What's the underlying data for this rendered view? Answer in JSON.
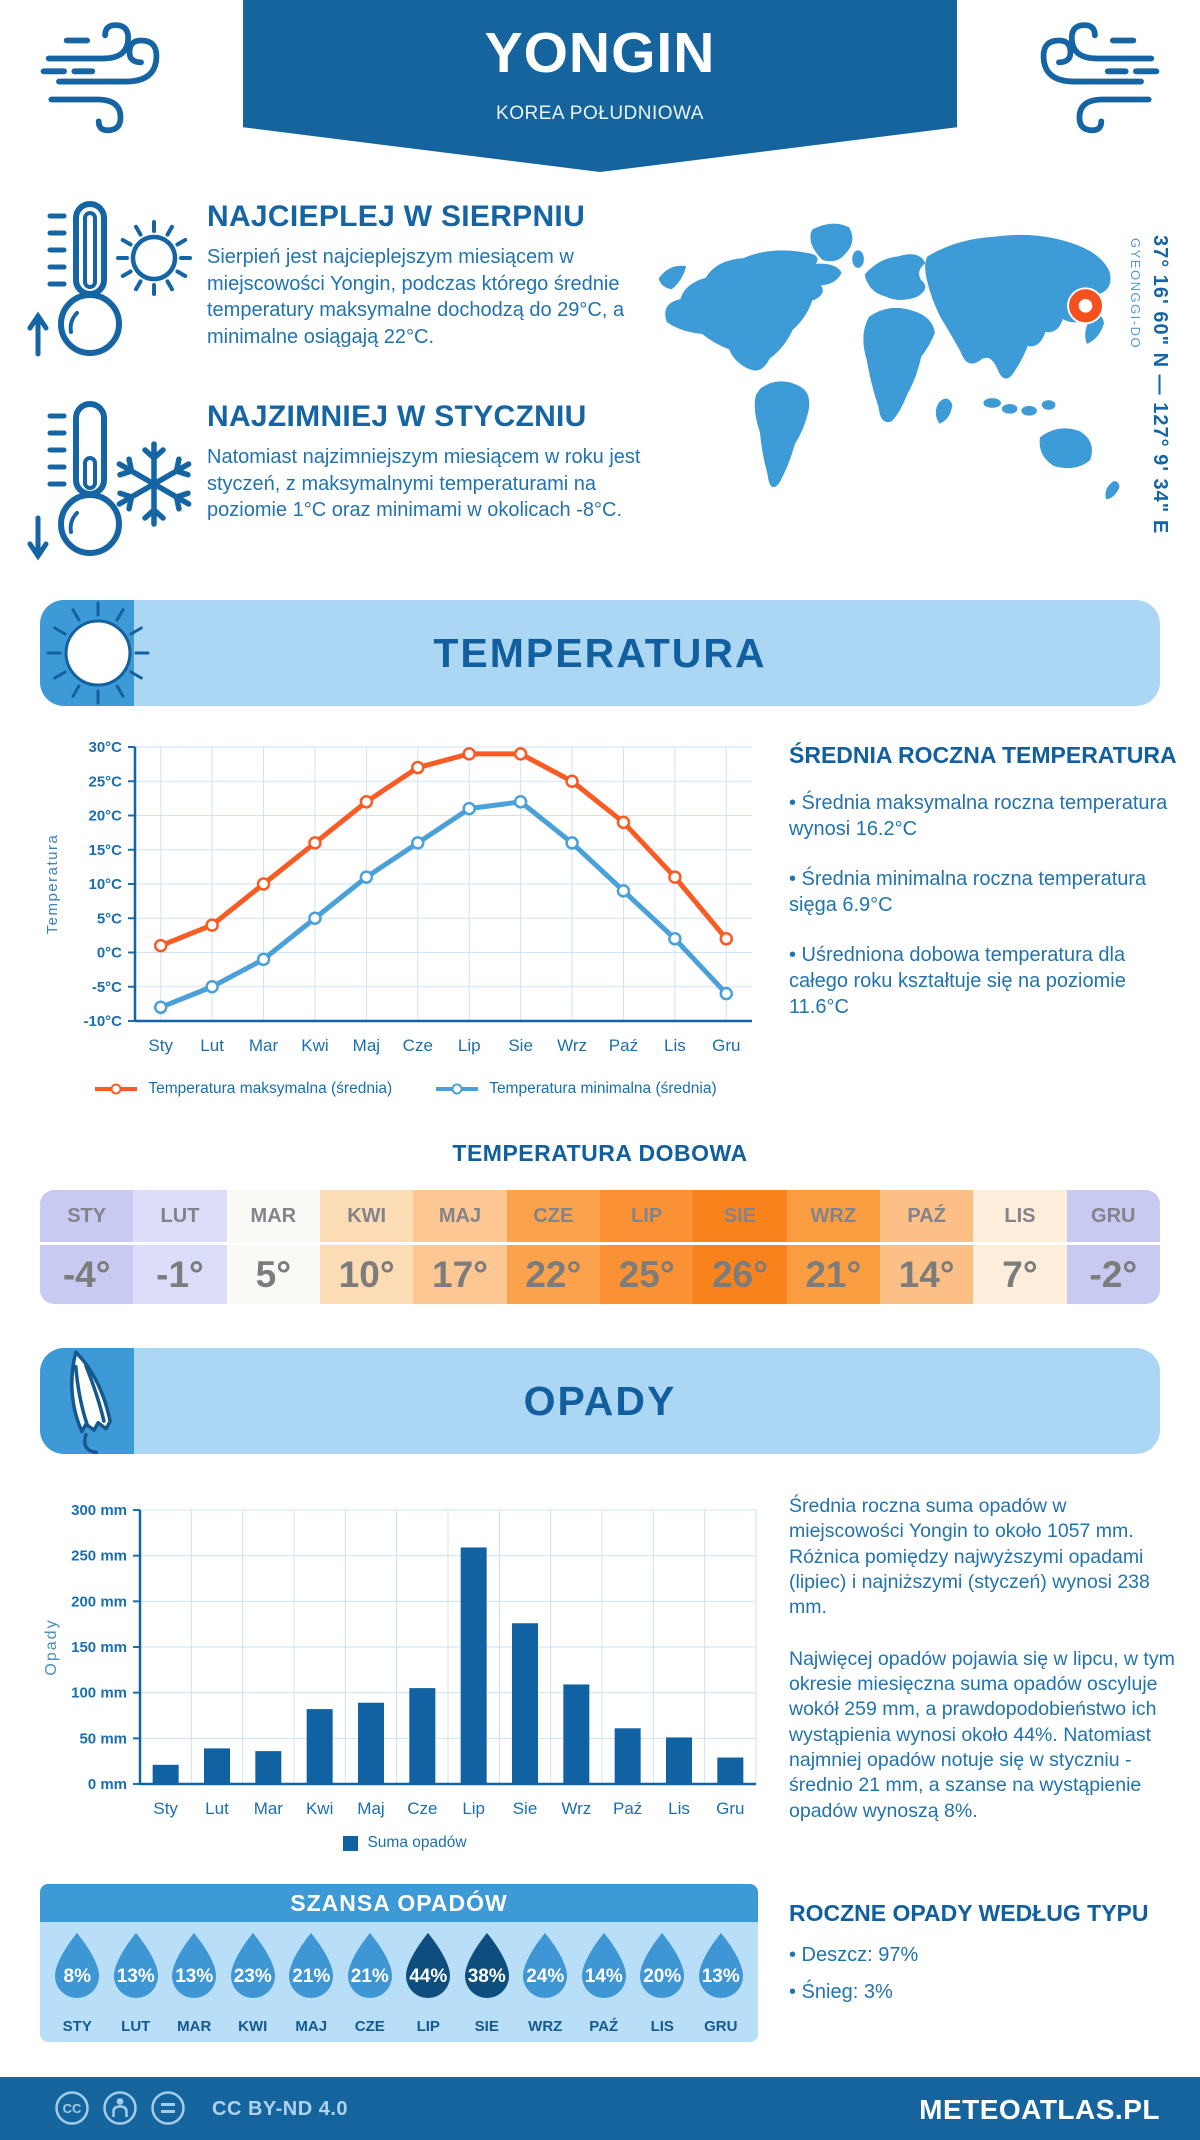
{
  "header": {
    "title": "YONGIN",
    "subtitle": "KOREA POŁUDNIOWA"
  },
  "location": {
    "coordinates": "37° 16' 60\" N — 127° 9' 34\" E",
    "region": "GYEONGGI-DO"
  },
  "highlights": [
    {
      "title": "NAJCIEPLEJ W SIERPNIU",
      "text": "Sierpień jest najcieplejszym miesiącem w miejscowości Yongin, podczas którego średnie temperatury maksymalne dochodzą do 29°C, a minimalne osiągają 22°C."
    },
    {
      "title": "NAJZIMNIEJ W STYCZNIU",
      "text": "Natomiast najzimniejszym miesiącem w roku jest styczeń, z maksymalnymi temperaturami na poziomie 1°C oraz minimami w okolicach -8°C."
    }
  ],
  "temperature": {
    "section_title": "TEMPERATURA",
    "annual_heading": "ŚREDNIA ROCZNA TEMPERATURA",
    "annual_bullets": [
      "Średnia maksymalna roczna temperatura wynosi 16.2°C",
      "Średnia minimalna roczna temperatura sięga 6.9°C",
      "Uśredniona dobowa temperatura dla całego roku kształtuje się na poziomie 11.6°C"
    ]
  },
  "precipitation": {
    "section_title": "OPADY",
    "paragraphs": [
      "Średnia roczna suma opadów w miejscowości Yongin to około 1057 mm. Różnica pomiędzy najwyższymi opadami (lipiec) i najniższymi (styczeń) wynosi 238 mm.",
      "Najwięcej opadów pojawia się w lipcu, w tym okresie miesięczna suma opadów oscyluje wokół 259 mm, a prawdopodobieństwo ich wystąpienia wynosi około 44%. Natomiast najmniej opadów notuje się w styczniu - średnio 21 mm, a szanse na wystąpienie opadów wynoszą 8%."
    ],
    "type_heading": "ROCZNE OPADY WEDŁUG TYPU",
    "type_bullets": [
      "Deszcz: 97%",
      "Śnieg: 3%"
    ]
  },
  "footer": {
    "license": "CC BY-ND 4.0",
    "brand": "METEOATLAS.PL"
  },
  "colors": {
    "brand_blue": "#15649e",
    "heading_blue": "#1565a5",
    "body_blue": "#2173ae",
    "band_light_blue": "#abd7f4",
    "band_icon_blue": "#3d9ad7",
    "map_blue": "#3d9bd7",
    "marker_orange": "#f4511e"
  },
  "chart_data": [
    {
      "type": "line",
      "x": [
        "Sty",
        "Lut",
        "Mar",
        "Kwi",
        "Maj",
        "Cze",
        "Lip",
        "Sie",
        "Wrz",
        "Paź",
        "Lis",
        "Gru"
      ],
      "series": [
        {
          "name": "Temperatura maksymalna (średnia)",
          "color": "#f95b25",
          "values": [
            1,
            4,
            10,
            16,
            22,
            27,
            29,
            29,
            25,
            19,
            11,
            2
          ]
        },
        {
          "name": "Temperatura minimalna (średnia)",
          "color": "#4aa0d9",
          "values": [
            -8,
            -5,
            -1,
            5,
            11,
            16,
            21,
            22,
            16,
            9,
            2,
            -6
          ]
        }
      ],
      "ylabel": "Temperatura",
      "ylim": [
        -10,
        30
      ],
      "ytick_step": 5,
      "ytick_suffix": "°C",
      "grid": true,
      "legend_position": "bottom"
    },
    {
      "type": "bar",
      "x": [
        "Sty",
        "Lut",
        "Mar",
        "Kwi",
        "Maj",
        "Cze",
        "Lip",
        "Sie",
        "Wrz",
        "Paź",
        "Lis",
        "Gru"
      ],
      "series": [
        {
          "name": "Suma opadów",
          "color": "#1162a2",
          "values": [
            21,
            39,
            36,
            82,
            89,
            105,
            259,
            176,
            109,
            61,
            51,
            29
          ]
        }
      ],
      "ylabel": "Opady",
      "ylim": [
        0,
        300
      ],
      "ytick_step": 50,
      "ytick_suffix": " mm",
      "grid": true,
      "legend_position": "bottom"
    },
    {
      "type": "table",
      "title": "TEMPERATURA DOBOWA",
      "columns": [
        "STY",
        "LUT",
        "MAR",
        "KWI",
        "MAJ",
        "CZE",
        "LIP",
        "SIE",
        "WRZ",
        "PAŹ",
        "LIS",
        "GRU"
      ],
      "values": [
        "-4°",
        "-1°",
        "5°",
        "10°",
        "17°",
        "22°",
        "25°",
        "26°",
        "21°",
        "14°",
        "7°",
        "-2°"
      ],
      "cell_colors": [
        "#c8caf1",
        "#dcddf8",
        "#fbf9f6",
        "#fcdcb4",
        "#fdc794",
        "#fba24c",
        "#fa9134",
        "#f8831c",
        "#fa9d41",
        "#fcbf85",
        "#fdeedb",
        "#c8caf1"
      ]
    },
    {
      "type": "table",
      "title": "SZANSA OPADÓW",
      "columns": [
        "STY",
        "LUT",
        "MAR",
        "KWI",
        "MAJ",
        "CZE",
        "LIP",
        "SIE",
        "WRZ",
        "PAŹ",
        "LIS",
        "GRU"
      ],
      "values": [
        "8%",
        "13%",
        "13%",
        "23%",
        "21%",
        "21%",
        "44%",
        "38%",
        "24%",
        "14%",
        "20%",
        "13%"
      ],
      "drop_color": "#3e97d4",
      "drop_color_highlight": "#0e4e7e",
      "highlight_columns": [
        "LIP",
        "SIE"
      ]
    }
  ]
}
